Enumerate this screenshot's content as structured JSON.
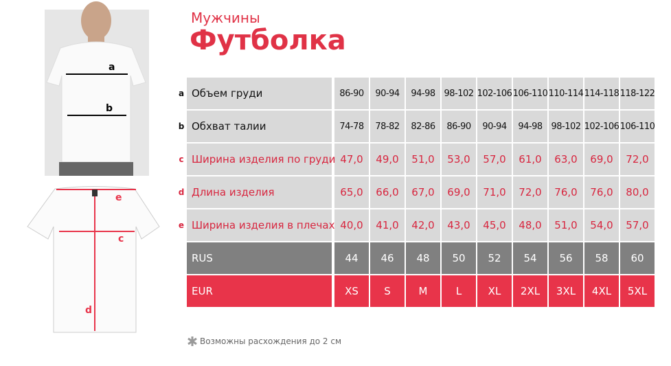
{
  "header": {
    "subtitle": "Мужчины",
    "title": "Футболка"
  },
  "figure": {
    "front_labels": [
      "a",
      "b"
    ],
    "back_labels": [
      "e",
      "c",
      "d"
    ]
  },
  "table": {
    "rows": [
      {
        "key": "a",
        "label": "Объем груди",
        "cells": [
          "86-90",
          "90-94",
          "94-98",
          "98-102",
          "102-106",
          "106-110",
          "110-114",
          "114-118",
          "118-122"
        ]
      },
      {
        "key": "b",
        "label": "Обхват талии",
        "cells": [
          "74-78",
          "78-82",
          "82-86",
          "86-90",
          "90-94",
          "94-98",
          "98-102",
          "102-106",
          "106-110"
        ]
      },
      {
        "key": "c",
        "label": "Ширина изделия по груди",
        "cells": [
          "47,0",
          "49,0",
          "51,0",
          "53,0",
          "57,0",
          "61,0",
          "63,0",
          "69,0",
          "72,0"
        ]
      },
      {
        "key": "d",
        "label": "Длина изделия",
        "cells": [
          "65,0",
          "66,0",
          "67,0",
          "69,0",
          "71,0",
          "72,0",
          "76,0",
          "76,0",
          "80,0"
        ]
      },
      {
        "key": "e",
        "label": "Ширина изделия в плечах",
        "cells": [
          "40,0",
          "41,0",
          "42,0",
          "43,0",
          "45,0",
          "48,0",
          "51,0",
          "54,0",
          "57,0"
        ]
      },
      {
        "label": "RUS",
        "cells": [
          "44",
          "46",
          "48",
          "50",
          "52",
          "54",
          "56",
          "58",
          "60"
        ]
      },
      {
        "label": "EUR",
        "cells": [
          "XS",
          "S",
          "M",
          "L",
          "XL",
          "2XL",
          "3XL",
          "4XL",
          "5XL"
        ]
      }
    ]
  },
  "footnote": "Возможны расхождения до 2 см"
}
